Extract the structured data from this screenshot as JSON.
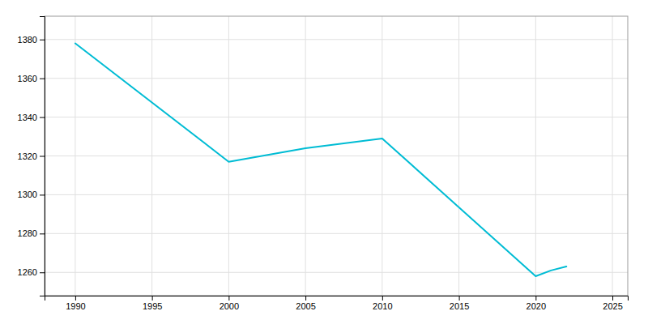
{
  "chart_data": {
    "type": "line",
    "x": [
      1990,
      2000,
      2005,
      2010,
      2020,
      2021,
      2022
    ],
    "values": [
      1378,
      1317,
      1324,
      1329,
      1258,
      1261,
      1263
    ],
    "color": "#00BCD4",
    "xlim": [
      1988,
      2026
    ],
    "ylim": [
      1248,
      1392
    ],
    "xticks": [
      1990,
      1995,
      2000,
      2005,
      2010,
      2015,
      2020,
      2025
    ],
    "yticks": [
      1260,
      1280,
      1300,
      1320,
      1340,
      1360,
      1380
    ],
    "grid": true
  }
}
